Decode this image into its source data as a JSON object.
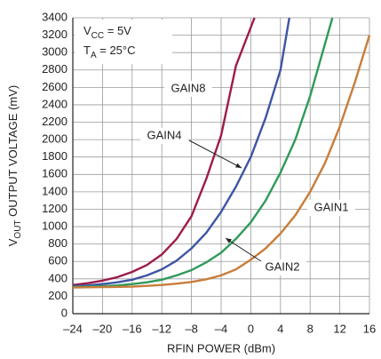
{
  "chart_data": {
    "type": "line",
    "annotations": [
      {
        "main": "V",
        "sub": "CC",
        "rest": " = 5V"
      },
      {
        "main": "T",
        "sub": "A",
        "rest": " = 25°C"
      }
    ],
    "xlabel": "RFIN POWER (dBm)",
    "ylabel": {
      "main": "V",
      "sub": "OUT",
      "rest": " OUTPUT VOLTAGE (mV)"
    },
    "xlim": [
      -24,
      16
    ],
    "ylim": [
      0,
      3400
    ],
    "xticks": [
      {
        "value": -24,
        "label": "–24"
      },
      {
        "value": -20,
        "label": "–20"
      },
      {
        "value": -16,
        "label": "–16"
      },
      {
        "value": -12,
        "label": "–12"
      },
      {
        "value": -8,
        "label": "–8"
      },
      {
        "value": -4,
        "label": "–4"
      },
      0,
      4,
      8,
      12,
      16
    ],
    "yticks": [
      0,
      200,
      400,
      600,
      800,
      1000,
      1200,
      1400,
      1600,
      1800,
      2000,
      2200,
      2400,
      2600,
      2800,
      3000,
      3200,
      3400
    ],
    "grid": true,
    "series": [
      {
        "name": "GAIN8",
        "color": "#9e1b4a",
        "x": [
          -24,
          -22,
          -20,
          -18,
          -16,
          -14,
          -12,
          -10,
          -8,
          -6,
          -4,
          -2,
          0.5
        ],
        "values": [
          330,
          350,
          380,
          420,
          480,
          560,
          680,
          860,
          1120,
          1550,
          2050,
          2850,
          3400
        ]
      },
      {
        "name": "GAIN4",
        "color": "#3d55a5",
        "x": [
          -24,
          -22,
          -20,
          -18,
          -16,
          -14,
          -12,
          -10,
          -8,
          -6,
          -4,
          -2,
          0,
          2,
          4,
          5.2
        ],
        "values": [
          315,
          325,
          340,
          360,
          390,
          440,
          510,
          610,
          750,
          930,
          1170,
          1460,
          1800,
          2250,
          2800,
          3400
        ]
      },
      {
        "name": "GAIN2",
        "color": "#2f9a5a",
        "x": [
          -24,
          -22,
          -20,
          -18,
          -16,
          -14,
          -12,
          -10,
          -8,
          -6,
          -4,
          -2,
          0,
          2,
          4,
          6,
          8,
          10,
          11
        ],
        "values": [
          305,
          310,
          315,
          325,
          340,
          360,
          390,
          440,
          500,
          590,
          700,
          860,
          1050,
          1300,
          1620,
          2000,
          2500,
          3100,
          3400
        ]
      },
      {
        "name": "GAIN1",
        "color": "#c87d3a",
        "x": [
          -24,
          -20,
          -16,
          -14,
          -12,
          -10,
          -8,
          -6,
          -4,
          -2,
          0,
          2,
          4,
          6,
          8,
          10,
          12,
          14,
          16
        ],
        "values": [
          300,
          305,
          310,
          320,
          330,
          345,
          365,
          395,
          440,
          510,
          620,
          750,
          920,
          1130,
          1400,
          1730,
          2150,
          2650,
          3200
        ]
      }
    ]
  }
}
